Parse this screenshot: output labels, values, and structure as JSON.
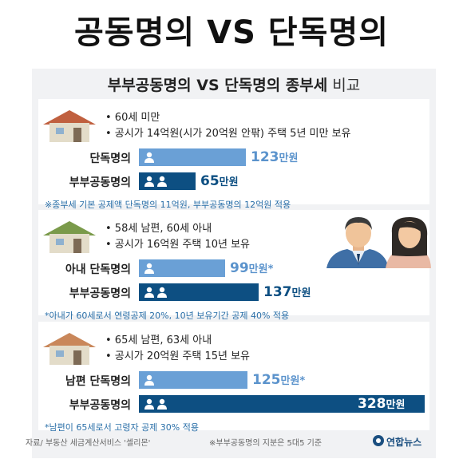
{
  "headline": "공동명의 VS 단독명의",
  "subtitle": {
    "bold": "부부공동명의 VS 단독명의 종부세",
    "normal": " 비교"
  },
  "colors": {
    "light_bar": "#6aa0d6",
    "dark_bar": "#0d4f82",
    "light_text": "#5b93cc",
    "dark_text": "#0d4f82",
    "note": "#2a6fa8"
  },
  "value_suffix": "만원",
  "icons": {
    "house": "house-icon",
    "person": "person-icon",
    "couple": "couple-illustration",
    "logo": "yonhap-logo-icon"
  },
  "cards": [
    {
      "bullets": [
        "• 60세 미만",
        "• 공시가 14억원(시가 20억원 안팎) 주택 5년 미만 보유"
      ],
      "house_color": "#c0603f",
      "rows": [
        {
          "label": "단독명의",
          "value": 123,
          "suffix": "",
          "people": 1,
          "style": "light"
        },
        {
          "label": "부부공동명의",
          "value": 65,
          "suffix": "",
          "people": 2,
          "style": "dark"
        }
      ],
      "note": "※종부세 기본 공제액 단독명의 11억원, 부부공동명의 12억원 적용"
    },
    {
      "bullets": [
        "• 58세 남편, 60세 아내",
        "• 공시가 16억원 주택 10년 보유"
      ],
      "house_color": "#7a9a4a",
      "rows": [
        {
          "label": "아내 단독명의",
          "value": 99,
          "suffix": "*",
          "people": 1,
          "style": "light"
        },
        {
          "label": "부부공동명의",
          "value": 137,
          "suffix": "",
          "people": 2,
          "style": "dark"
        }
      ],
      "note": "*아내가 60세로서 연령공제 20%, 10년 보유기간 공제 40% 적용"
    },
    {
      "bullets": [
        "• 65세 남편, 63세 아내",
        "• 공시가 20억원 주택 15년 보유"
      ],
      "house_color": "#c9875a",
      "rows": [
        {
          "label": "남편 단독명의",
          "value": 125,
          "suffix": "*",
          "people": 1,
          "style": "light"
        },
        {
          "label": "부부공동명의",
          "value": 328,
          "suffix": "",
          "people": 2,
          "style": "dark"
        }
      ],
      "note": "*남편이 65세로서 고령자 공제 30% 적용"
    }
  ],
  "source": "자료/ 부동산 세금계산서비스 '셀리몬'",
  "footnote": "※부부공동명의 지분은 5대5 기준",
  "logo_text": "연합뉴스",
  "chart_data": {
    "type": "bar",
    "title": "부부공동명의 VS 단독명의 종부세 비교",
    "unit": "만원",
    "groups": [
      {
        "categories": [
          "단독명의",
          "부부공동명의"
        ],
        "values": [
          123,
          65
        ]
      },
      {
        "categories": [
          "아내 단독명의",
          "부부공동명의"
        ],
        "values": [
          99,
          137
        ]
      },
      {
        "categories": [
          "남편 단독명의",
          "부부공동명의"
        ],
        "values": [
          125,
          328
        ]
      }
    ]
  }
}
